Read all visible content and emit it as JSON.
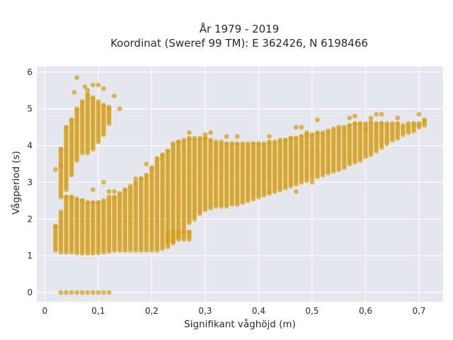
{
  "chart_data": {
    "type": "scatter",
    "title_line1": "År 1979 - 2019",
    "title_line2": "Koordinat (Sweref 99 TM): E 362426, N 6198466",
    "xlabel": "Signifikant våghöjd (m)",
    "ylabel": "Vågperiod (s)",
    "xlim": [
      -0.015,
      0.745
    ],
    "ylim": [
      -0.25,
      6.15
    ],
    "x_ticks": [
      0,
      0.1,
      0.2,
      0.3,
      0.4,
      0.5,
      0.6,
      0.7
    ],
    "x_tick_labels": [
      "0",
      "0,1",
      "0,2",
      "0,3",
      "0,4",
      "0,5",
      "0,6",
      "0,7"
    ],
    "y_ticks": [
      0,
      1,
      2,
      3,
      4,
      5,
      6
    ],
    "y_tick_labels": [
      "0",
      "1",
      "2",
      "3",
      "4",
      "5",
      "6"
    ],
    "grid": true,
    "colors": {
      "marker": "#d4a017",
      "plot_bg": "#e6e6ef",
      "grid": "#ffffff"
    },
    "series": [
      {
        "columns": [
          [
            0.02,
            1.15,
            1.8
          ],
          [
            0.03,
            1.1,
            2.2
          ],
          [
            0.04,
            1.1,
            2.6
          ],
          [
            0.05,
            1.1,
            2.6
          ],
          [
            0.06,
            1.08,
            2.55
          ],
          [
            0.07,
            1.07,
            2.5
          ],
          [
            0.08,
            1.07,
            2.45
          ],
          [
            0.09,
            1.07,
            2.45
          ],
          [
            0.1,
            1.08,
            2.45
          ],
          [
            0.11,
            1.1,
            2.5
          ],
          [
            0.12,
            1.12,
            2.6
          ],
          [
            0.13,
            1.15,
            2.6
          ],
          [
            0.14,
            1.15,
            2.7
          ],
          [
            0.15,
            1.15,
            2.8
          ],
          [
            0.16,
            1.15,
            2.9
          ],
          [
            0.17,
            1.15,
            3.0
          ],
          [
            0.18,
            1.15,
            3.1
          ],
          [
            0.19,
            1.15,
            3.2
          ],
          [
            0.2,
            1.15,
            3.4
          ],
          [
            0.21,
            1.15,
            3.65
          ],
          [
            0.22,
            1.2,
            3.75
          ],
          [
            0.23,
            1.25,
            3.85
          ],
          [
            0.24,
            1.35,
            4.05
          ],
          [
            0.25,
            1.5,
            4.1
          ],
          [
            0.26,
            1.7,
            4.15
          ],
          [
            0.27,
            1.9,
            4.2
          ],
          [
            0.28,
            2.0,
            4.2
          ],
          [
            0.29,
            2.15,
            4.2
          ],
          [
            0.3,
            2.25,
            4.2
          ],
          [
            0.31,
            2.3,
            4.15
          ],
          [
            0.32,
            2.35,
            4.1
          ],
          [
            0.33,
            2.35,
            4.1
          ],
          [
            0.34,
            2.35,
            4.05
          ],
          [
            0.35,
            2.4,
            4.05
          ],
          [
            0.36,
            2.4,
            4.05
          ],
          [
            0.37,
            2.45,
            4.05
          ],
          [
            0.38,
            2.5,
            4.05
          ],
          [
            0.39,
            2.55,
            4.05
          ],
          [
            0.4,
            2.6,
            4.05
          ],
          [
            0.41,
            2.65,
            4.05
          ],
          [
            0.42,
            2.7,
            4.1
          ],
          [
            0.43,
            2.75,
            4.1
          ],
          [
            0.44,
            2.8,
            4.15
          ],
          [
            0.45,
            2.85,
            4.15
          ],
          [
            0.46,
            2.9,
            4.2
          ],
          [
            0.47,
            2.95,
            4.2
          ],
          [
            0.48,
            3.0,
            4.25
          ],
          [
            0.49,
            3.05,
            4.3
          ],
          [
            0.5,
            3.1,
            4.3
          ],
          [
            0.51,
            3.15,
            4.35
          ],
          [
            0.52,
            3.2,
            4.35
          ],
          [
            0.53,
            3.25,
            4.4
          ],
          [
            0.54,
            3.3,
            4.45
          ],
          [
            0.55,
            3.35,
            4.5
          ],
          [
            0.56,
            3.4,
            4.5
          ],
          [
            0.57,
            3.5,
            4.55
          ],
          [
            0.58,
            3.55,
            4.6
          ],
          [
            0.59,
            3.6,
            4.6
          ],
          [
            0.6,
            3.7,
            4.6
          ],
          [
            0.61,
            3.75,
            4.65
          ],
          [
            0.62,
            3.85,
            4.6
          ],
          [
            0.63,
            3.95,
            4.6
          ],
          [
            0.64,
            4.05,
            4.6
          ],
          [
            0.65,
            4.15,
            4.6
          ],
          [
            0.66,
            4.2,
            4.6
          ],
          [
            0.67,
            4.3,
            4.55
          ],
          [
            0.68,
            4.35,
            4.6
          ],
          [
            0.69,
            4.4,
            4.6
          ],
          [
            0.7,
            4.5,
            4.6
          ],
          [
            0.71,
            4.55,
            4.65
          ]
        ],
        "upper_branch": [
          [
            0.03,
            2.6,
            3.9
          ],
          [
            0.04,
            2.8,
            4.5
          ],
          [
            0.05,
            3.2,
            4.7
          ],
          [
            0.06,
            3.6,
            5.0
          ],
          [
            0.07,
            3.8,
            5.2
          ],
          [
            0.08,
            3.8,
            5.4
          ],
          [
            0.09,
            3.9,
            5.3
          ],
          [
            0.1,
            4.1,
            5.2
          ],
          [
            0.11,
            4.3,
            5.1
          ],
          [
            0.12,
            4.6,
            5.0
          ]
        ],
        "low_cluster": [
          [
            0.23,
            1.4,
            1.65
          ],
          [
            0.24,
            1.4,
            1.65
          ],
          [
            0.25,
            1.45,
            1.65
          ],
          [
            0.26,
            1.45,
            1.65
          ],
          [
            0.27,
            1.45,
            1.65
          ]
        ],
        "zero_row": {
          "x": [
            0.03,
            0.04,
            0.05,
            0.06,
            0.07,
            0.08,
            0.09,
            0.1,
            0.11,
            0.12
          ],
          "y": 0
        },
        "outliers": [
          [
            0.02,
            3.35
          ],
          [
            0.03,
            3.45
          ],
          [
            0.055,
            5.45
          ],
          [
            0.06,
            5.85
          ],
          [
            0.075,
            5.6
          ],
          [
            0.08,
            5.5
          ],
          [
            0.09,
            5.65
          ],
          [
            0.1,
            5.65
          ],
          [
            0.11,
            5.55
          ],
          [
            0.13,
            5.35
          ],
          [
            0.12,
            5.05
          ],
          [
            0.14,
            5.0
          ],
          [
            0.11,
            3.0
          ],
          [
            0.12,
            2.75
          ],
          [
            0.13,
            2.75
          ],
          [
            0.09,
            2.8
          ],
          [
            0.17,
            3.1
          ],
          [
            0.19,
            3.5
          ],
          [
            0.27,
            4.35
          ],
          [
            0.3,
            4.3
          ],
          [
            0.31,
            4.35
          ],
          [
            0.34,
            4.25
          ],
          [
            0.36,
            4.25
          ],
          [
            0.42,
            4.25
          ],
          [
            0.47,
            4.5
          ],
          [
            0.48,
            4.5
          ],
          [
            0.51,
            4.7
          ],
          [
            0.57,
            4.75
          ],
          [
            0.58,
            4.8
          ],
          [
            0.61,
            4.75
          ],
          [
            0.62,
            4.85
          ],
          [
            0.63,
            4.85
          ],
          [
            0.66,
            4.75
          ],
          [
            0.7,
            4.85
          ],
          [
            0.71,
            4.7
          ],
          [
            0.49,
            4.35
          ],
          [
            0.6,
            4.45
          ],
          [
            0.42,
            2.75
          ],
          [
            0.47,
            2.75
          ],
          [
            0.5,
            3.0
          ]
        ]
      }
    ]
  }
}
